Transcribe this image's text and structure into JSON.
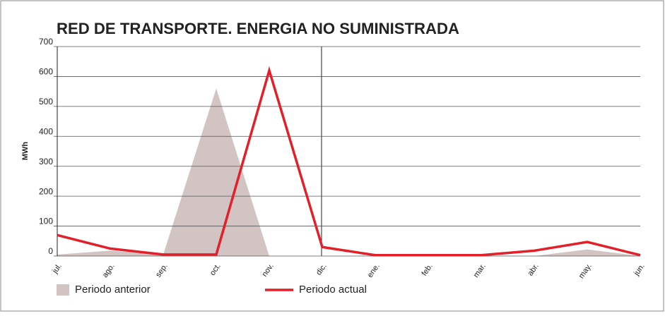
{
  "chart_data": {
    "type": "line",
    "title": "RED DE TRANSPORTE. ENERGIA NO SUMINISTRADA",
    "y_label": "MWh",
    "categories": [
      "jul.",
      "ago.",
      "sep.",
      "oct.",
      "nov.",
      "dic.",
      "ene.",
      "feb.",
      "mar.",
      "abr.",
      "may.",
      "jun."
    ],
    "series": [
      {
        "name": "Periodo anterior",
        "color": "#d3c4c4",
        "kind": "area",
        "values": [
          5,
          18,
          5,
          560,
          0,
          0,
          0,
          0,
          0,
          0,
          22,
          0
        ]
      },
      {
        "name": "Periodo actual",
        "color": "#e3202a",
        "kind": "line",
        "values": [
          70,
          25,
          5,
          5,
          620,
          30,
          3,
          3,
          3,
          18,
          47,
          3
        ]
      }
    ],
    "ylim": [
      0,
      700
    ],
    "yticks": [
      0,
      100,
      200,
      300,
      400,
      500,
      600,
      700
    ],
    "grid": true
  }
}
